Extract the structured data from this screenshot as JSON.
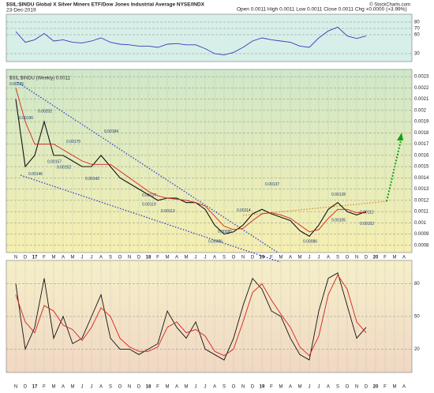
{
  "header": {
    "symbol": "$SIL:$INDU Global X Silver Miners ETF/Dow Jones Industrial Average NYSE/INDX",
    "date": "23-Dec-2019",
    "quote": "Open 0.0011  High 0.0011  Low 0.0011  Close 0.0011  Chg +0.0000 (+3.99%)",
    "credit": "© StockCharts.com"
  },
  "chart_data": [
    {
      "type": "line",
      "ylim": [
        20,
        90
      ],
      "yticks": [
        30,
        60,
        70,
        80
      ],
      "series": [
        {
          "color": "#3a3ab8",
          "values": [
            65,
            48,
            52,
            62,
            50,
            52,
            48,
            47,
            50,
            55,
            48,
            45,
            44,
            42,
            42,
            40,
            45,
            46,
            44,
            44,
            38,
            30,
            28,
            32,
            40,
            50,
            55,
            52,
            50,
            48,
            42,
            40,
            55,
            66,
            72,
            58,
            54,
            58,
            null,
            null,
            null,
            null
          ]
        }
      ]
    },
    {
      "type": "line",
      "legend": "$SIL:$INDU (Weekly) 0.0011",
      "categories": [
        "N",
        "D",
        "17",
        "F",
        "M",
        "A",
        "M",
        "J",
        "J",
        "A",
        "S",
        "O",
        "N",
        "D",
        "18",
        "F",
        "M",
        "A",
        "M",
        "J",
        "J",
        "A",
        "S",
        "O",
        "N",
        "D",
        "19",
        "F",
        "M",
        "A",
        "M",
        "J",
        "J",
        "A",
        "S",
        "O",
        "N",
        "D",
        "20",
        "F",
        "M",
        "A"
      ],
      "ylim": [
        0.00075,
        0.00235
      ],
      "yticks": [
        0.0008,
        0.0009,
        0.001,
        0.0011,
        0.0012,
        0.0013,
        0.0014,
        0.0015,
        0.0016,
        0.0017,
        0.0018,
        0.0019,
        0.002,
        0.0021,
        0.0022,
        0.0023
      ],
      "series": [
        {
          "color": "#111111",
          "values": [
            0.0021,
            0.0015,
            0.0016,
            0.0019,
            0.0016,
            0.0016,
            0.00155,
            0.0015,
            0.0015,
            0.0016,
            0.0015,
            0.0014,
            0.00135,
            0.0013,
            0.00125,
            0.0012,
            0.00122,
            0.00122,
            0.00118,
            0.00118,
            0.00112,
            0.00098,
            0.0009,
            0.00092,
            0.00098,
            0.00108,
            0.00112,
            0.00108,
            0.00105,
            0.00102,
            0.00093,
            0.00088,
            0.00098,
            0.00112,
            0.00118,
            0.0011,
            0.00107,
            0.0011,
            null,
            null,
            null,
            null
          ]
        },
        {
          "color": "#d62020",
          "values": [
            0.0022,
            0.0019,
            0.0017,
            0.0017,
            0.0017,
            0.00165,
            0.0016,
            0.00155,
            0.00152,
            0.00152,
            0.00152,
            0.00146,
            0.0014,
            0.00134,
            0.00128,
            0.00124,
            0.00122,
            0.00121,
            0.0012,
            0.00118,
            0.00115,
            0.00106,
            0.00097,
            0.00094,
            0.00095,
            0.00102,
            0.00108,
            0.00109,
            0.00107,
            0.00104,
            0.00098,
            0.00092,
            0.00094,
            0.00104,
            0.00112,
            0.00112,
            0.00109,
            0.00109,
            null,
            null,
            null,
            null
          ]
        }
      ],
      "annotations": [
        "0.00226",
        "0.00196",
        "0.00146",
        "0.00202",
        "0.00157",
        "0.00152",
        "0.00175",
        "0.00142",
        "0.00184",
        "0.00127",
        "0.00119",
        "0.00113",
        "0.00114",
        "0.00095",
        "0.00086",
        "0.00137",
        "0.00086",
        "0.00105",
        "0.00128",
        "0.00112",
        "0.00102"
      ]
    },
    {
      "type": "line",
      "categories": [
        "N",
        "D",
        "17",
        "F",
        "M",
        "A",
        "M",
        "J",
        "J",
        "A",
        "S",
        "O",
        "N",
        "D",
        "18",
        "F",
        "M",
        "A",
        "M",
        "J",
        "J",
        "A",
        "S",
        "O",
        "N",
        "D",
        "19",
        "F",
        "M",
        "A",
        "M",
        "J",
        "J",
        "A",
        "S",
        "O",
        "N",
        "D",
        "20",
        "F",
        "M",
        "A"
      ],
      "ylim": [
        0,
        100
      ],
      "yticks": [
        20,
        50,
        80
      ],
      "series": [
        {
          "color": "#111111",
          "values": [
            80,
            20,
            40,
            85,
            30,
            50,
            25,
            30,
            50,
            70,
            30,
            20,
            20,
            15,
            20,
            25,
            55,
            40,
            30,
            45,
            20,
            15,
            10,
            30,
            60,
            85,
            75,
            55,
            50,
            30,
            15,
            10,
            55,
            85,
            90,
            60,
            30,
            40,
            null,
            null,
            null,
            null
          ]
        },
        {
          "color": "#d62020",
          "values": [
            70,
            45,
            35,
            60,
            55,
            42,
            38,
            28,
            40,
            58,
            50,
            30,
            22,
            18,
            18,
            22,
            40,
            45,
            35,
            38,
            32,
            18,
            14,
            20,
            45,
            72,
            80,
            65,
            52,
            40,
            22,
            14,
            32,
            70,
            88,
            75,
            45,
            35,
            null,
            null,
            null,
            null
          ]
        }
      ]
    }
  ]
}
